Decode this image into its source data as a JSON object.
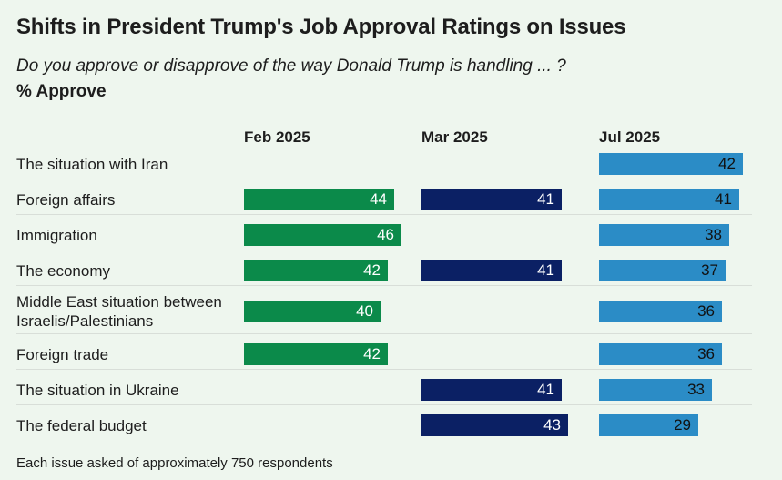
{
  "chart_data": {
    "type": "bar",
    "title": "Shifts in President Trump's Job Approval Ratings on Issues",
    "subtitle": "Do you approve or disapprove of the way Donald Trump is handling ... ?",
    "ylabel": "% Approve",
    "categories": [
      "The situation with Iran",
      "Foreign affairs",
      "Immigration",
      "The economy",
      "Middle East situation between Israelis/Palestinians",
      "Foreign trade",
      "The situation in Ukraine",
      "The federal budget"
    ],
    "series": [
      {
        "name": "Feb 2025",
        "color": "#0b8a4a",
        "values": [
          null,
          44,
          46,
          42,
          40,
          42,
          null,
          null
        ]
      },
      {
        "name": "Mar 2025",
        "color": "#0b2064",
        "values": [
          null,
          41,
          null,
          41,
          null,
          null,
          41,
          43
        ]
      },
      {
        "name": "Jul 2025",
        "color": "#2b8cc6",
        "values": [
          42,
          41,
          38,
          37,
          36,
          36,
          33,
          29
        ]
      }
    ],
    "footnote": "Each issue asked of approximately 750 respondents"
  }
}
